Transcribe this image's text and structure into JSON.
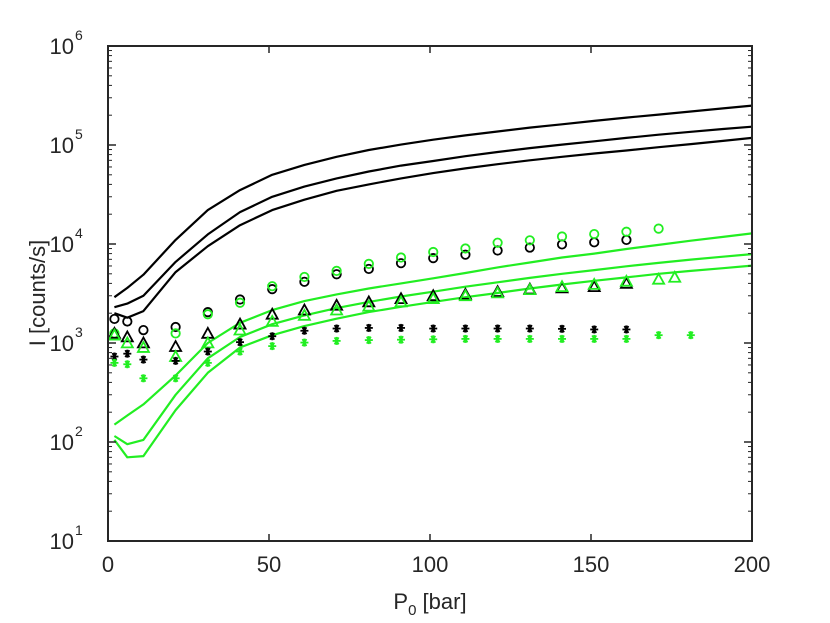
{
  "chart_data": {
    "type": "scatter",
    "title": "",
    "xlabel": {
      "main": "P",
      "subscript": "0",
      "suffix": " [bar]"
    },
    "ylabel": "I [counts/s]",
    "xlim": [
      0,
      200
    ],
    "ylim": [
      10,
      1000000
    ],
    "yscale": "log",
    "grid": false,
    "x_ticks": [
      0,
      50,
      100,
      150,
      200
    ],
    "y_ticks": [
      {
        "value": 10,
        "base": "10",
        "exp": "1"
      },
      {
        "value": 100,
        "base": "10",
        "exp": "2"
      },
      {
        "value": 1000,
        "base": "10",
        "exp": "3"
      },
      {
        "value": 10000,
        "base": "10",
        "exp": "4"
      },
      {
        "value": 100000,
        "base": "10",
        "exp": "5"
      },
      {
        "value": 1000000,
        "base": "10",
        "exp": "6"
      }
    ],
    "colors": {
      "black": "#000000",
      "green": "#22ee22",
      "axis": "#262626"
    },
    "series": [
      {
        "name": "black-line-upper",
        "kind": "line",
        "color": "black",
        "x": [
          2,
          6,
          11,
          21,
          31,
          41,
          51,
          61,
          71,
          81,
          91,
          101,
          111,
          121,
          131,
          141,
          151,
          161,
          171,
          181,
          191,
          200
        ],
        "y": [
          2900,
          3600,
          4900,
          11000,
          22000,
          35000,
          50000,
          63000,
          76000,
          89000,
          101000,
          113000,
          125000,
          137000,
          150000,
          162000,
          175000,
          189000,
          203000,
          218000,
          234000,
          250000
        ]
      },
      {
        "name": "black-line-middle",
        "kind": "line",
        "color": "black",
        "x": [
          2,
          6,
          11,
          21,
          31,
          41,
          51,
          61,
          71,
          81,
          91,
          101,
          111,
          121,
          131,
          141,
          151,
          161,
          171,
          181,
          191,
          200
        ],
        "y": [
          2300,
          2500,
          3000,
          6600,
          12500,
          21000,
          30000,
          38000,
          46000,
          54000,
          62000,
          69000,
          77000,
          85000,
          93000,
          101000,
          109000,
          118000,
          127000,
          136000,
          145000,
          153000
        ]
      },
      {
        "name": "black-line-lower",
        "kind": "line",
        "color": "black",
        "x": [
          2,
          6,
          11,
          21,
          31,
          41,
          51,
          61,
          71,
          81,
          91,
          101,
          111,
          121,
          131,
          141,
          151,
          161,
          171,
          181,
          191,
          200
        ],
        "y": [
          2000,
          1800,
          2100,
          5200,
          9500,
          15500,
          22000,
          28000,
          34500,
          40000,
          46000,
          52000,
          58000,
          64000,
          70000,
          76000,
          82000,
          88000,
          95000,
          102000,
          110000,
          118000
        ]
      },
      {
        "name": "green-line-upper",
        "kind": "line",
        "color": "green",
        "x": [
          2,
          6,
          11,
          21,
          31,
          41,
          51,
          61,
          71,
          81,
          91,
          101,
          111,
          121,
          131,
          141,
          151,
          161,
          171,
          181,
          191,
          200
        ],
        "y": [
          150,
          185,
          240,
          470,
          1000,
          1600,
          2150,
          2650,
          3100,
          3550,
          4000,
          4500,
          5100,
          5800,
          6500,
          7300,
          8000,
          8900,
          9800,
          10800,
          11800,
          12800
        ]
      },
      {
        "name": "green-line-middle",
        "kind": "line",
        "color": "green",
        "x": [
          2,
          6,
          11,
          21,
          31,
          41,
          51,
          61,
          71,
          81,
          91,
          101,
          111,
          121,
          131,
          141,
          151,
          161,
          171,
          181,
          191,
          200
        ],
        "y": [
          115,
          95,
          105,
          300,
          700,
          1150,
          1550,
          1900,
          2250,
          2600,
          2950,
          3300,
          3700,
          4100,
          4550,
          5000,
          5450,
          5950,
          6450,
          6950,
          7450,
          7900
        ]
      },
      {
        "name": "green-line-lower",
        "kind": "line",
        "color": "green",
        "x": [
          2,
          6,
          11,
          21,
          31,
          41,
          51,
          61,
          71,
          81,
          91,
          101,
          111,
          121,
          131,
          141,
          151,
          161,
          171,
          181,
          191,
          200
        ],
        "y": [
          105,
          70,
          72,
          210,
          500,
          900,
          1200,
          1480,
          1760,
          2050,
          2320,
          2600,
          2900,
          3200,
          3550,
          3900,
          4250,
          4600,
          5000,
          5350,
          5700,
          6050
        ]
      },
      {
        "name": "black-circles",
        "kind": "markers",
        "marker": "circle",
        "color": "black",
        "x": [
          2,
          6,
          11,
          21,
          31,
          41,
          51,
          61,
          71,
          81,
          91,
          101,
          111,
          121,
          131,
          141,
          151,
          161
        ],
        "y": [
          1750,
          1650,
          1350,
          1450,
          2050,
          2750,
          3500,
          4150,
          4950,
          5600,
          6400,
          7200,
          7800,
          8600,
          9200,
          9900,
          10400,
          11000
        ]
      },
      {
        "name": "green-circles",
        "kind": "markers",
        "marker": "circle",
        "color": "green",
        "x": [
          2,
          21,
          31,
          41,
          51,
          61,
          71,
          81,
          91,
          101,
          111,
          121,
          131,
          141,
          151,
          161,
          171
        ],
        "y": [
          1250,
          1250,
          1950,
          2550,
          3750,
          4650,
          5350,
          6300,
          7300,
          8300,
          9000,
          10300,
          10900,
          11900,
          12600,
          13300,
          14300
        ]
      },
      {
        "name": "black-triangles",
        "kind": "markers",
        "marker": "triangle",
        "color": "black",
        "x": [
          2,
          6,
          11,
          21,
          31,
          41,
          51,
          61,
          71,
          81,
          91,
          101,
          111,
          121,
          131,
          141,
          151,
          161
        ],
        "y": [
          1250,
          1150,
          1000,
          920,
          1250,
          1550,
          1950,
          2150,
          2400,
          2600,
          2800,
          3000,
          3100,
          3300,
          3500,
          3600,
          3700,
          4000
        ]
      },
      {
        "name": "green-triangles",
        "kind": "markers",
        "marker": "triangle",
        "color": "green",
        "x": [
          2,
          6,
          11,
          21,
          31,
          41,
          51,
          61,
          71,
          81,
          91,
          101,
          111,
          121,
          131,
          141,
          151,
          161,
          171,
          176
        ],
        "y": [
          1200,
          1000,
          900,
          730,
          1000,
          1350,
          1650,
          1900,
          2150,
          2350,
          2600,
          2800,
          3000,
          3200,
          3450,
          3700,
          3900,
          4200,
          4400,
          4600
        ]
      },
      {
        "name": "black-asterisks",
        "kind": "markers",
        "marker": "asterisk",
        "color": "black",
        "x": [
          2,
          6,
          11,
          21,
          31,
          41,
          51,
          61,
          71,
          81,
          91,
          101,
          111,
          121,
          131,
          141,
          151,
          161
        ],
        "y": [
          730,
          780,
          680,
          660,
          820,
          1020,
          1170,
          1330,
          1400,
          1420,
          1420,
          1400,
          1400,
          1400,
          1400,
          1390,
          1370,
          1370
        ]
      },
      {
        "name": "green-asterisks",
        "kind": "markers",
        "marker": "asterisk",
        "color": "green",
        "x": [
          2,
          6,
          11,
          21,
          31,
          41,
          51,
          61,
          71,
          81,
          91,
          101,
          111,
          121,
          131,
          141,
          151,
          161,
          171,
          181
        ],
        "y": [
          630,
          610,
          440,
          440,
          630,
          820,
          930,
          1010,
          1050,
          1070,
          1080,
          1090,
          1100,
          1100,
          1100,
          1100,
          1100,
          1100,
          1200,
          1200
        ]
      }
    ]
  }
}
